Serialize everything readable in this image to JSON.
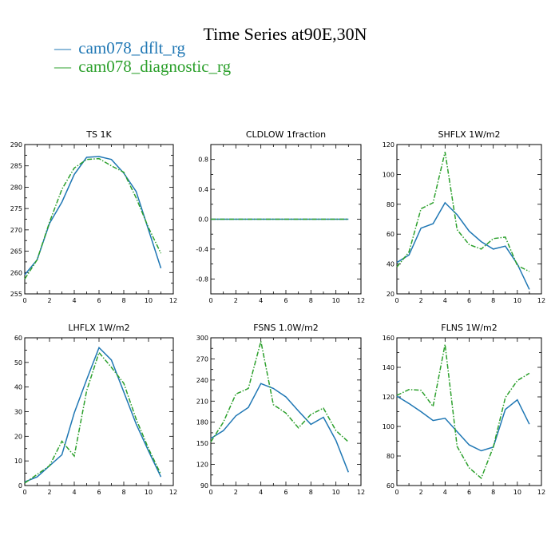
{
  "colors": {
    "series1": "#1f77b4",
    "series2": "#2ca02c",
    "axis": "#000000"
  },
  "title": "Time Series at90E,30N",
  "legend": [
    {
      "marker": "—",
      "label": "cam078_dflt_rg"
    },
    {
      "marker": "—",
      "label": "cam078_diagnostic_rg"
    }
  ],
  "chart_data": [
    {
      "type": "line",
      "title": "TS   1K",
      "x": [
        0,
        1,
        2,
        3,
        4,
        5,
        6,
        7,
        8,
        9,
        10,
        11
      ],
      "xlim": [
        0,
        12
      ],
      "xticks": [
        0,
        2,
        4,
        6,
        8,
        10,
        12
      ],
      "ylim": [
        255,
        290
      ],
      "yticks": [
        255,
        260,
        265,
        270,
        275,
        280,
        285,
        290
      ],
      "yticklabels": [
        "255",
        "260",
        "265",
        "270",
        "275",
        "280",
        "285",
        "290"
      ],
      "series": [
        {
          "name": "cam078_dflt_rg",
          "values": [
            259.5,
            263,
            271.5,
            276.5,
            283,
            287,
            287.2,
            286.5,
            283.3,
            279,
            270,
            261
          ]
        },
        {
          "name": "cam078_diagnostic_rg",
          "values": [
            258.5,
            263,
            271.8,
            279.5,
            284.5,
            286.5,
            286.7,
            285,
            283.5,
            277.5,
            270.5,
            264.5
          ]
        }
      ]
    },
    {
      "type": "line",
      "title": "CLDLOW   1fraction",
      "x": [
        0,
        1,
        2,
        3,
        4,
        5,
        6,
        7,
        8,
        9,
        10,
        11
      ],
      "xlim": [
        0,
        12
      ],
      "xticks": [
        0,
        2,
        4,
        6,
        8,
        10,
        12
      ],
      "ylim": [
        -1.0,
        1.0
      ],
      "yticks": [
        -0.8,
        -0.4,
        0.0,
        0.4,
        0.8
      ],
      "yticklabels": [
        "-0.8",
        "-0.4",
        "0.0",
        "0.4",
        "0.8"
      ],
      "series": [
        {
          "name": "cam078_dflt_rg",
          "values": [
            0,
            0,
            0,
            0,
            0,
            0,
            0,
            0,
            0,
            0,
            0,
            0
          ]
        },
        {
          "name": "cam078_diagnostic_rg",
          "values": [
            0,
            0,
            0,
            0,
            0,
            0,
            0,
            0,
            0,
            0,
            0,
            0
          ]
        }
      ]
    },
    {
      "type": "line",
      "title": "SHFLX   1W/m2",
      "x": [
        0,
        1,
        2,
        3,
        4,
        5,
        6,
        7,
        8,
        9,
        10,
        11
      ],
      "xlim": [
        0,
        12
      ],
      "xticks": [
        0,
        2,
        4,
        6,
        8,
        10,
        12
      ],
      "ylim": [
        20,
        120
      ],
      "yticks": [
        20,
        40,
        60,
        80,
        100,
        120
      ],
      "yticklabels": [
        "20",
        "40",
        "60",
        "80",
        "100",
        "120"
      ],
      "series": [
        {
          "name": "cam078_dflt_rg",
          "values": [
            41,
            46,
            64,
            67,
            81,
            73,
            62,
            55,
            50,
            52,
            40,
            23
          ]
        },
        {
          "name": "cam078_diagnostic_rg",
          "values": [
            38,
            48,
            77,
            81,
            115,
            63,
            53,
            50,
            57,
            58,
            39,
            35
          ]
        }
      ]
    },
    {
      "type": "line",
      "title": "LHFLX   1W/m2",
      "x": [
        0,
        1,
        2,
        3,
        4,
        5,
        6,
        7,
        8,
        9,
        10,
        11
      ],
      "xlim": [
        0,
        12
      ],
      "xticks": [
        0,
        2,
        4,
        6,
        8,
        10,
        12
      ],
      "ylim": [
        0,
        60
      ],
      "yticks": [
        0,
        10,
        20,
        30,
        40,
        50,
        60
      ],
      "yticklabels": [
        "0",
        "10",
        "20",
        "30",
        "40",
        "50",
        "60"
      ],
      "series": [
        {
          "name": "cam078_dflt_rg",
          "values": [
            1.5,
            3.5,
            8,
            12.5,
            29.5,
            43,
            56,
            51,
            38,
            25,
            14,
            3.5
          ]
        },
        {
          "name": "cam078_diagnostic_rg",
          "values": [
            1,
            4.5,
            8,
            18,
            12,
            38.5,
            54,
            48,
            41.5,
            27,
            15,
            4.5
          ]
        }
      ]
    },
    {
      "type": "line",
      "title": "FSNS   1.0W/m2",
      "x": [
        0,
        1,
        2,
        3,
        4,
        5,
        6,
        7,
        8,
        9,
        10,
        11
      ],
      "xlim": [
        0,
        12
      ],
      "xticks": [
        0,
        2,
        4,
        6,
        8,
        10,
        12
      ],
      "ylim": [
        90,
        300
      ],
      "yticks": [
        90,
        120,
        150,
        180,
        210,
        240,
        270,
        300
      ],
      "yticklabels": [
        "90",
        "120",
        "150",
        "180",
        "210",
        "240",
        "270",
        "300"
      ],
      "series": [
        {
          "name": "cam078_dflt_rg",
          "values": [
            157,
            168,
            189,
            201,
            235,
            228,
            216,
            196,
            177,
            187,
            154,
            109
          ]
        },
        {
          "name": "cam078_diagnostic_rg",
          "values": [
            152,
            180,
            220,
            228,
            295,
            205,
            193,
            172,
            191,
            200,
            168,
            152
          ]
        }
      ]
    },
    {
      "type": "line",
      "title": "FLNS   1W/m2",
      "x": [
        0,
        1,
        2,
        3,
        4,
        5,
        6,
        7,
        8,
        9,
        10,
        11
      ],
      "xlim": [
        0,
        12
      ],
      "xticks": [
        0,
        2,
        4,
        6,
        8,
        10,
        12
      ],
      "ylim": [
        60,
        160
      ],
      "yticks": [
        60,
        80,
        100,
        120,
        140,
        160
      ],
      "yticklabels": [
        "60",
        "80",
        "100",
        "120",
        "140",
        "160"
      ],
      "series": [
        {
          "name": "cam078_dflt_rg",
          "values": [
            120.5,
            115.5,
            110,
            104,
            105.5,
            96.5,
            87.5,
            83.5,
            86,
            111.5,
            118,
            101.5
          ]
        },
        {
          "name": "cam078_diagnostic_rg",
          "values": [
            121,
            125,
            124.5,
            113.5,
            155.5,
            86.5,
            72,
            65,
            86,
            119.5,
            131,
            136
          ]
        }
      ]
    }
  ]
}
